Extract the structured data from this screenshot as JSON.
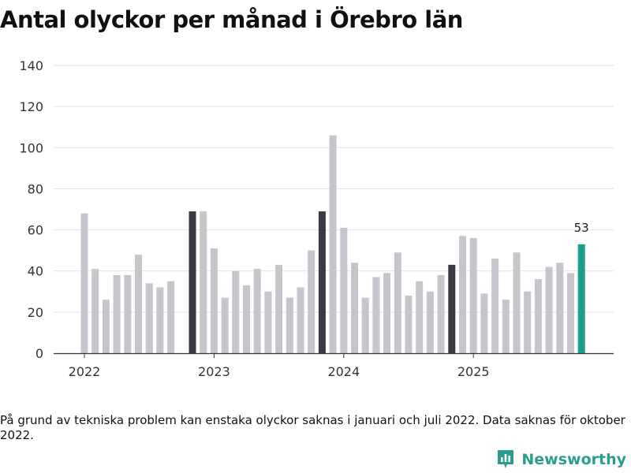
{
  "title": "Antal olyckor per månad i Örebro län",
  "note": "På grund av tekniska problem kan enstaka olyckor saknas i januari och juli 2022. Data saknas för oktober 2022.",
  "brand": {
    "name": "Newsworthy",
    "icon": "newsworthy-logo-icon"
  },
  "colors": {
    "default": "#c6c5cb",
    "highlight": "#3b3a44",
    "latest": "#1a9e8f",
    "grid": "#e2e2e2",
    "axis": "#333333"
  },
  "chart_data": {
    "type": "bar",
    "title": "Antal olyckor per månad i Örebro län",
    "xlabel": "",
    "ylabel": "",
    "ylim": [
      0,
      140
    ],
    "yticks": [
      0,
      20,
      40,
      60,
      80,
      100,
      120,
      140
    ],
    "xticks": [
      {
        "label": "2022",
        "index": 0
      },
      {
        "label": "2023",
        "index": 12
      },
      {
        "label": "2024",
        "index": 24
      },
      {
        "label": "2025",
        "index": 36
      }
    ],
    "grid": true,
    "bars": [
      {
        "period": "2022-01",
        "value": 68,
        "highlight": "default"
      },
      {
        "period": "2022-02",
        "value": 41,
        "highlight": "default"
      },
      {
        "period": "2022-03",
        "value": 26,
        "highlight": "default"
      },
      {
        "period": "2022-04",
        "value": 38,
        "highlight": "default"
      },
      {
        "period": "2022-05",
        "value": 38,
        "highlight": "default"
      },
      {
        "period": "2022-06",
        "value": 48,
        "highlight": "default"
      },
      {
        "period": "2022-07",
        "value": 34,
        "highlight": "default"
      },
      {
        "period": "2022-08",
        "value": 32,
        "highlight": "default"
      },
      {
        "period": "2022-09",
        "value": 35,
        "highlight": "default"
      },
      {
        "period": "2022-10",
        "value": null,
        "highlight": "default"
      },
      {
        "period": "2022-11",
        "value": 69,
        "highlight": "dark"
      },
      {
        "period": "2022-12",
        "value": 69,
        "highlight": "default"
      },
      {
        "period": "2023-01",
        "value": 51,
        "highlight": "default"
      },
      {
        "period": "2023-02",
        "value": 27,
        "highlight": "default"
      },
      {
        "period": "2023-03",
        "value": 40,
        "highlight": "default"
      },
      {
        "period": "2023-04",
        "value": 33,
        "highlight": "default"
      },
      {
        "period": "2023-05",
        "value": 41,
        "highlight": "default"
      },
      {
        "period": "2023-06",
        "value": 30,
        "highlight": "default"
      },
      {
        "period": "2023-07",
        "value": 43,
        "highlight": "default"
      },
      {
        "period": "2023-08",
        "value": 27,
        "highlight": "default"
      },
      {
        "period": "2023-09",
        "value": 32,
        "highlight": "default"
      },
      {
        "period": "2023-10",
        "value": 50,
        "highlight": "default"
      },
      {
        "period": "2023-11",
        "value": 69,
        "highlight": "dark"
      },
      {
        "period": "2023-12",
        "value": 106,
        "highlight": "default"
      },
      {
        "period": "2024-01",
        "value": 61,
        "highlight": "default"
      },
      {
        "period": "2024-02",
        "value": 44,
        "highlight": "default"
      },
      {
        "period": "2024-03",
        "value": 27,
        "highlight": "default"
      },
      {
        "period": "2024-04",
        "value": 37,
        "highlight": "default"
      },
      {
        "period": "2024-05",
        "value": 39,
        "highlight": "default"
      },
      {
        "period": "2024-06",
        "value": 49,
        "highlight": "default"
      },
      {
        "period": "2024-07",
        "value": 28,
        "highlight": "default"
      },
      {
        "period": "2024-08",
        "value": 35,
        "highlight": "default"
      },
      {
        "period": "2024-09",
        "value": 30,
        "highlight": "default"
      },
      {
        "period": "2024-10",
        "value": 38,
        "highlight": "default"
      },
      {
        "period": "2024-11",
        "value": 43,
        "highlight": "dark"
      },
      {
        "period": "2024-12",
        "value": 57,
        "highlight": "default"
      },
      {
        "period": "2025-01",
        "value": 56,
        "highlight": "default"
      },
      {
        "period": "2025-02",
        "value": 29,
        "highlight": "default"
      },
      {
        "period": "2025-03",
        "value": 46,
        "highlight": "default"
      },
      {
        "period": "2025-04",
        "value": 26,
        "highlight": "default"
      },
      {
        "period": "2025-05",
        "value": 49,
        "highlight": "default"
      },
      {
        "period": "2025-06",
        "value": 30,
        "highlight": "default"
      },
      {
        "period": "2025-07",
        "value": 36,
        "highlight": "default"
      },
      {
        "period": "2025-08",
        "value": 42,
        "highlight": "default"
      },
      {
        "period": "2025-09",
        "value": 44,
        "highlight": "default"
      },
      {
        "period": "2025-10",
        "value": 39,
        "highlight": "default"
      },
      {
        "period": "2025-11",
        "value": 53,
        "highlight": "latest",
        "label": "53"
      }
    ]
  }
}
